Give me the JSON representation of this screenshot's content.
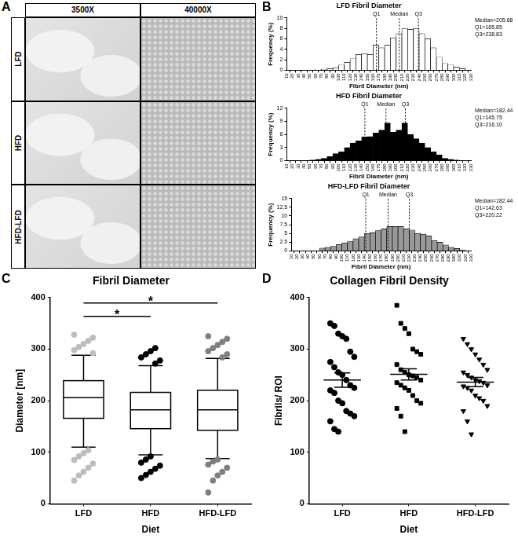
{
  "panel_labels": [
    "A",
    "B",
    "C",
    "D"
  ],
  "image_panel": {
    "columns": [
      "3500X",
      "40000X"
    ],
    "rows": [
      "LFD",
      "HFD",
      "HFD-LFD"
    ]
  },
  "chart_data": [
    {
      "type": "histogram",
      "title": "LFD Fibril Diameter",
      "x_label": "Fibril Diameter (nm)",
      "y_label": "Frequency (%)",
      "bins": [
        10,
        20,
        30,
        40,
        50,
        60,
        70,
        80,
        90,
        100,
        110,
        120,
        130,
        140,
        150,
        160,
        170,
        180,
        190,
        200,
        210,
        220,
        230,
        240,
        250,
        260,
        270,
        280,
        290,
        300,
        310,
        320,
        330
      ],
      "values": [
        0,
        0,
        0,
        0,
        0.1,
        0.1,
        0.2,
        0.3,
        0.5,
        1,
        1.5,
        2.2,
        3,
        3.2,
        3,
        4.8,
        4.3,
        4.8,
        6.2,
        7,
        8,
        7.8,
        8,
        7,
        6,
        4.3,
        2.5,
        1.3,
        1,
        0.6,
        0.3,
        0.1
      ],
      "color": "#ffffff",
      "xlim": [
        10,
        330
      ],
      "xticks": [
        10,
        20,
        30,
        40,
        50,
        60,
        70,
        80,
        90,
        100,
        110,
        120,
        130,
        140,
        150,
        160,
        170,
        180,
        190,
        200,
        210,
        220,
        230,
        240,
        250,
        260,
        270,
        280,
        290,
        300,
        310,
        320,
        330
      ],
      "ylim": [
        0,
        10
      ],
      "yticks": [
        0,
        2,
        4,
        6,
        8,
        10
      ],
      "grid": false,
      "annotations": [
        "Median=205.68",
        "Q1=165.85",
        "Q3=238.83"
      ],
      "markers": [
        {
          "label": "Q1",
          "x": 165.85
        },
        {
          "label": "Median",
          "x": 205.68
        },
        {
          "label": "Q3",
          "x": 238.83
        }
      ]
    },
    {
      "type": "histogram",
      "title": "HFD Fibril Diameter",
      "x_label": "Fibril Diameter (nm)",
      "y_label": "Frequency (%)",
      "bins": [
        10,
        20,
        30,
        40,
        50,
        60,
        70,
        80,
        90,
        100,
        110,
        120,
        130,
        140,
        150,
        160,
        170,
        180,
        190,
        200,
        210,
        220,
        230,
        240,
        250,
        260,
        270,
        280,
        290,
        300,
        310,
        320,
        330
      ],
      "values": [
        0,
        0,
        0,
        0,
        0.1,
        0.3,
        0.5,
        0.9,
        1.6,
        2,
        3,
        4,
        4.5,
        5.4,
        5.5,
        6.3,
        7,
        8.6,
        6.5,
        7,
        8.6,
        6,
        5,
        4,
        3,
        2,
        1.3,
        0.5,
        0.3,
        0.1,
        0,
        0
      ],
      "color": "#000000",
      "xlim": [
        10,
        330
      ],
      "xticks": [
        10,
        20,
        30,
        40,
        50,
        60,
        70,
        80,
        90,
        100,
        110,
        120,
        130,
        140,
        150,
        160,
        170,
        180,
        190,
        200,
        210,
        220,
        230,
        240,
        250,
        260,
        270,
        280,
        290,
        300,
        310,
        320,
        330
      ],
      "ylim": [
        0,
        12
      ],
      "yticks": [
        0,
        3,
        6,
        9,
        12
      ],
      "grid": false,
      "annotations": [
        "Median=182.44",
        "Q1=145.75",
        "Q3=216.10"
      ],
      "markers": [
        {
          "label": "Q1",
          "x": 145.75
        },
        {
          "label": "Median",
          "x": 182.44
        },
        {
          "label": "Q3",
          "x": 216.1
        }
      ]
    },
    {
      "type": "histogram",
      "title": "HFD-LFD Fibril Diameter",
      "x_label": "Fibril Diameter (nm)",
      "y_label": "Frequency (%)",
      "bins": [
        10,
        20,
        30,
        40,
        50,
        60,
        70,
        80,
        90,
        100,
        110,
        120,
        130,
        140,
        150,
        160,
        170,
        180,
        190,
        200,
        210,
        220,
        230,
        240,
        250,
        260,
        270,
        280,
        290,
        300,
        310,
        320,
        330
      ],
      "values": [
        0,
        0,
        0,
        0,
        0.1,
        0.8,
        1,
        1.3,
        1.8,
        2.3,
        2.8,
        3.5,
        4,
        5,
        5.2,
        5.8,
        6.3,
        7,
        7,
        7,
        6.3,
        6,
        5,
        4.8,
        4.3,
        3,
        2.5,
        1.7,
        1,
        0.7,
        0.3,
        0.1
      ],
      "color": "#999999",
      "xlim": [
        10,
        330
      ],
      "xticks": [
        10,
        20,
        30,
        40,
        50,
        60,
        70,
        80,
        90,
        100,
        110,
        120,
        130,
        140,
        150,
        160,
        170,
        180,
        190,
        200,
        210,
        220,
        230,
        240,
        250,
        260,
        270,
        280,
        290,
        300,
        310,
        320,
        330
      ],
      "ylim": [
        0,
        15
      ],
      "yticks": [
        0,
        2.5,
        5,
        7.5,
        10,
        12.5,
        15
      ],
      "grid": false,
      "annotations": [
        "Median=182.44",
        "Q1=142.63",
        "Q3=220.22"
      ],
      "markers": [
        {
          "label": "Q1",
          "x": 142.63
        },
        {
          "label": "Median",
          "x": 182.44
        },
        {
          "label": "Q3",
          "x": 220.22
        }
      ]
    },
    {
      "type": "box",
      "title": "Fibril Diameter",
      "x_label": "Diet",
      "y_label": "Diameter [nm]",
      "categories": [
        "LFD",
        "HFD",
        "HFD-LFD"
      ],
      "boxes": [
        {
          "q1": 165.85,
          "median": 205.68,
          "q3": 238.83,
          "whisker_low": 110,
          "whisker_high": 288,
          "outliers": [
            45,
            55,
            62,
            70,
            78,
            85,
            92,
            98,
            104,
            292,
            298,
            304,
            310,
            316,
            322,
            328
          ]
        },
        {
          "q1": 145.75,
          "median": 182.44,
          "q3": 216.1,
          "whisker_low": 95,
          "whisker_high": 268,
          "outliers": [
            50,
            56,
            62,
            68,
            74,
            80,
            86,
            92,
            272,
            278,
            284,
            290,
            296,
            302
          ]
        },
        {
          "q1": 142.63,
          "median": 182.44,
          "q3": 220.22,
          "whisker_low": 88,
          "whisker_high": 282,
          "outliers": [
            22,
            45,
            55,
            62,
            70,
            76,
            82,
            86,
            284,
            290,
            296,
            302,
            308,
            314,
            320,
            325
          ]
        }
      ],
      "colors": [
        "#bdbdbd",
        "#000000",
        "#7f7f7f"
      ],
      "ylim": [
        0,
        400
      ],
      "yticks": [
        0,
        100,
        200,
        300,
        400
      ],
      "grid": false,
      "significance": [
        {
          "from": "LFD",
          "to": "HFD",
          "label": "*"
        },
        {
          "from": "LFD",
          "to": "HFD-LFD",
          "label": "*"
        }
      ]
    },
    {
      "type": "scatter",
      "title": "Collagen Fibril Density",
      "x_label": "Diet",
      "y_label": "Fibrils/ ROI",
      "categories": [
        "LFD",
        "HFD",
        "HFD-LFD"
      ],
      "groups": [
        {
          "marker": "circle",
          "color": "#000000",
          "mean": 240,
          "sem": 14,
          "values": [
            350,
            345,
            330,
            325,
            320,
            295,
            285,
            275,
            265,
            255,
            250,
            240,
            230,
            225,
            220,
            215,
            200,
            195,
            180,
            175,
            170,
            160,
            145,
            140
          ]
        },
        {
          "marker": "square",
          "color": "#000000",
          "mean": 251,
          "sem": 11,
          "values": [
            385,
            350,
            340,
            330,
            300,
            295,
            290,
            270,
            260,
            255,
            250,
            248,
            245,
            240,
            235,
            230,
            225,
            220,
            210,
            200,
            195,
            185,
            170,
            140
          ]
        },
        {
          "marker": "triangle-down",
          "color": "#000000",
          "mean": 236,
          "sem": 9,
          "values": [
            320,
            310,
            300,
            290,
            280,
            270,
            260,
            255,
            250,
            245,
            240,
            238,
            235,
            230,
            228,
            225,
            220,
            210,
            205,
            200,
            190,
            180,
            160,
            135
          ]
        }
      ],
      "ylim": [
        0,
        400
      ],
      "yticks": [
        0,
        100,
        200,
        300,
        400
      ],
      "grid": false
    }
  ]
}
